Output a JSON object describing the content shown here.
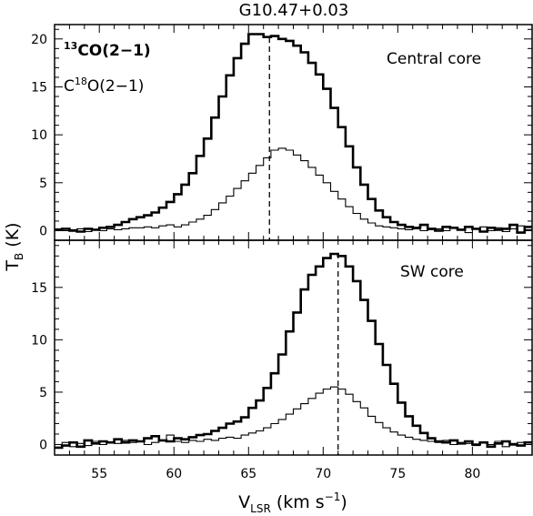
{
  "title": "G10.47+0.03",
  "ylabel_main": "T",
  "ylabel_sub": "B",
  "ylabel_unit": " (K)",
  "xlabel_main": "V",
  "xlabel_sub": "LSR",
  "xlabel_unit_pre": " (km s",
  "xlabel_unit_sup": "−1",
  "xlabel_unit_post": ")",
  "legend": {
    "line1_sup": "13",
    "line1_rest": "CO(2−1)",
    "line2_pre": "C",
    "line2_sup": "18",
    "line2_rest": "O(2−1)"
  },
  "chart_data": [
    {
      "type": "line",
      "panel": "top",
      "label": "Central core",
      "xlim": [
        52,
        84
      ],
      "ylim": [
        -1,
        21.5
      ],
      "xticks": [
        55,
        60,
        65,
        70,
        75,
        80
      ],
      "yticks": [
        0,
        5,
        10,
        15,
        20
      ],
      "ref_velocity": 66.4,
      "x": [
        52.0,
        52.5,
        53.0,
        53.5,
        54.0,
        54.5,
        55.0,
        55.5,
        56.0,
        56.5,
        57.0,
        57.5,
        58.0,
        58.5,
        59.0,
        59.5,
        60.0,
        60.5,
        61.0,
        61.5,
        62.0,
        62.5,
        63.0,
        63.5,
        64.0,
        64.5,
        65.0,
        65.5,
        66.0,
        66.5,
        67.0,
        67.5,
        68.0,
        68.5,
        69.0,
        69.5,
        70.0,
        70.5,
        71.0,
        71.5,
        72.0,
        72.5,
        73.0,
        73.5,
        74.0,
        74.5,
        75.0,
        75.5,
        76.0,
        76.5,
        77.0,
        77.5,
        78.0,
        78.5,
        79.0,
        79.5,
        80.0,
        80.5,
        81.0,
        81.5,
        82.0,
        82.5,
        83.0,
        83.5
      ],
      "series": [
        {
          "name": "13CO(2-1)",
          "style": "thick",
          "values": [
            0.1,
            0.2,
            0.0,
            -0.1,
            0.2,
            0.1,
            0.3,
            0.4,
            0.6,
            0.9,
            1.2,
            1.4,
            1.6,
            1.9,
            2.4,
            3.0,
            3.8,
            4.8,
            6.0,
            7.8,
            9.6,
            11.8,
            14.0,
            16.2,
            18.0,
            19.5,
            20.5,
            20.5,
            20.2,
            20.3,
            20.0,
            19.8,
            19.3,
            18.6,
            17.5,
            16.3,
            14.8,
            12.8,
            10.8,
            8.8,
            6.6,
            4.8,
            3.3,
            2.1,
            1.4,
            0.9,
            0.6,
            0.4,
            0.3,
            0.6,
            0.2,
            0.0,
            0.4,
            0.3,
            0.1,
            0.4,
            0.2,
            -0.1,
            0.3,
            0.1,
            0.2,
            0.6,
            -0.2,
            0.4
          ]
        },
        {
          "name": "C18O(2-1)",
          "style": "thin",
          "values": [
            0.2,
            0.0,
            0.1,
            0.2,
            -0.1,
            0.1,
            0.0,
            0.2,
            0.1,
            0.2,
            0.3,
            0.3,
            0.4,
            0.3,
            0.5,
            0.6,
            0.4,
            0.6,
            0.9,
            1.2,
            1.6,
            2.2,
            2.9,
            3.6,
            4.4,
            5.2,
            6.0,
            6.8,
            7.6,
            8.4,
            8.6,
            8.4,
            7.9,
            7.3,
            6.6,
            5.8,
            5.0,
            4.1,
            3.3,
            2.5,
            1.8,
            1.2,
            0.8,
            0.5,
            0.4,
            0.3,
            0.2,
            0.1,
            0.2,
            0.0,
            0.1,
            0.2,
            0.0,
            0.3,
            0.1,
            -0.2,
            0.2,
            0.4,
            0.0,
            0.3,
            -0.1,
            0.2,
            0.5,
            0.1
          ]
        }
      ]
    },
    {
      "type": "line",
      "panel": "bottom",
      "label": "SW core",
      "xlim": [
        52,
        84
      ],
      "ylim": [
        -1,
        19.5
      ],
      "xticks": [
        55,
        60,
        65,
        70,
        75,
        80
      ],
      "yticks": [
        0,
        5,
        10,
        15
      ],
      "ref_velocity": 71.0,
      "x": [
        52.0,
        52.5,
        53.0,
        53.5,
        54.0,
        54.5,
        55.0,
        55.5,
        56.0,
        56.5,
        57.0,
        57.5,
        58.0,
        58.5,
        59.0,
        59.5,
        60.0,
        60.5,
        61.0,
        61.5,
        62.0,
        62.5,
        63.0,
        63.5,
        64.0,
        64.5,
        65.0,
        65.5,
        66.0,
        66.5,
        67.0,
        67.5,
        68.0,
        68.5,
        69.0,
        69.5,
        70.0,
        70.5,
        71.0,
        71.5,
        72.0,
        72.5,
        73.0,
        73.5,
        74.0,
        74.5,
        75.0,
        75.5,
        76.0,
        76.5,
        77.0,
        77.5,
        78.0,
        78.5,
        79.0,
        79.5,
        80.0,
        80.5,
        81.0,
        81.5,
        82.0,
        82.5,
        83.0,
        83.5
      ],
      "series": [
        {
          "name": "13CO(2-1)",
          "style": "thick",
          "values": [
            -0.3,
            -0.1,
            0.2,
            -0.2,
            0.4,
            0.1,
            0.3,
            0.2,
            0.5,
            0.2,
            0.4,
            0.3,
            0.6,
            0.8,
            0.4,
            0.3,
            0.6,
            0.5,
            0.7,
            0.9,
            1.0,
            1.3,
            1.6,
            2.0,
            2.2,
            2.6,
            3.5,
            4.2,
            5.4,
            6.8,
            8.6,
            10.8,
            12.6,
            14.8,
            16.2,
            17.0,
            17.8,
            18.2,
            18.0,
            17.0,
            15.6,
            13.8,
            11.8,
            9.6,
            7.6,
            5.8,
            4.0,
            2.7,
            1.8,
            1.1,
            0.6,
            0.3,
            0.2,
            0.4,
            0.1,
            0.3,
            0.0,
            0.2,
            -0.2,
            0.1,
            0.3,
            0.0,
            -0.1,
            0.2
          ]
        },
        {
          "name": "C18O(2-1)",
          "style": "thin",
          "values": [
            0.0,
            0.2,
            -0.2,
            0.1,
            -0.1,
            0.3,
            0.0,
            0.2,
            0.1,
            0.4,
            0.2,
            0.3,
            0.0,
            0.2,
            0.4,
            0.9,
            0.3,
            0.2,
            0.4,
            0.3,
            0.5,
            0.4,
            0.6,
            0.7,
            0.6,
            0.9,
            1.1,
            1.3,
            1.6,
            2.0,
            2.4,
            2.9,
            3.4,
            3.9,
            4.4,
            4.9,
            5.3,
            5.5,
            5.3,
            4.8,
            4.1,
            3.5,
            2.7,
            2.1,
            1.6,
            1.2,
            0.9,
            0.7,
            0.5,
            0.4,
            0.3,
            0.2,
            0.4,
            0.0,
            0.2,
            0.1,
            -0.1,
            0.2,
            0.0,
            0.3,
            -0.2,
            0.1,
            0.2,
            0.0
          ]
        }
      ]
    }
  ]
}
